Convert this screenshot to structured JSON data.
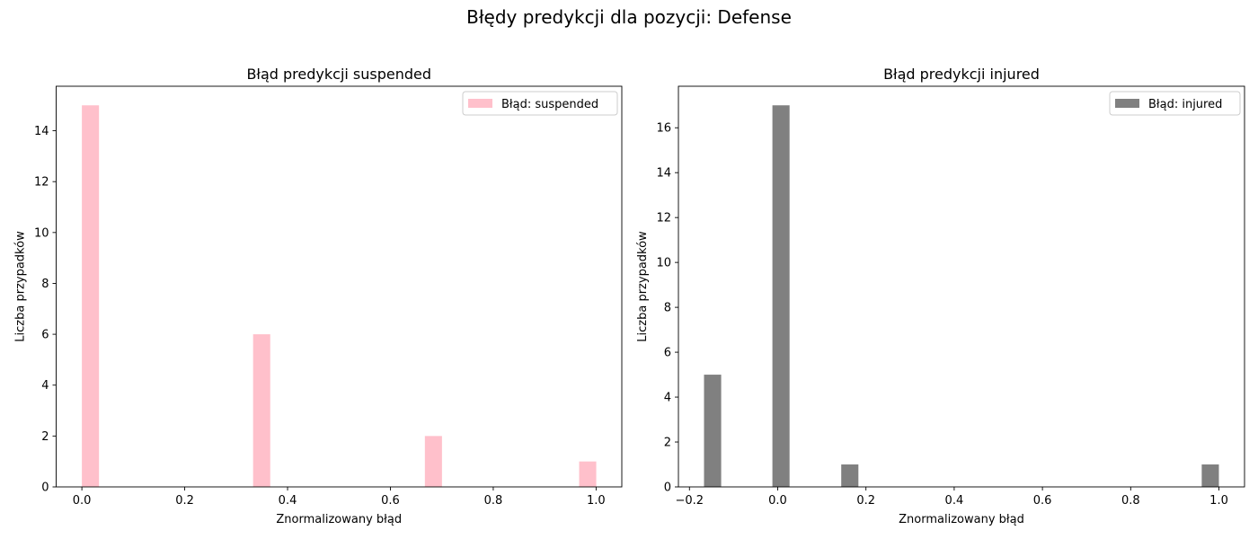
{
  "suptitle": "Błędy predykcji dla pozycji: Defense",
  "chart_data": [
    {
      "type": "bar",
      "title": "Błąd predykcji suspended",
      "xlabel": "Znormalizowany błąd",
      "ylabel": "Liczba przypadków",
      "legend": "Błąd: suspended",
      "legend_position": "top-right",
      "color": "#ffc0cb",
      "bin_width": 0.0333,
      "xlim": [
        -0.05,
        1.05
      ],
      "ylim": [
        0,
        15.75
      ],
      "xticks": [
        0.0,
        0.2,
        0.4,
        0.6,
        0.8,
        1.0
      ],
      "xtick_labels": [
        "0.0",
        "0.2",
        "0.4",
        "0.6",
        "0.8",
        "1.0"
      ],
      "yticks": [
        0,
        2,
        4,
        6,
        8,
        10,
        12,
        14
      ],
      "ytick_labels": [
        "0",
        "2",
        "4",
        "6",
        "8",
        "10",
        "12",
        "14"
      ],
      "bars": [
        {
          "x": 0.0,
          "value": 15
        },
        {
          "x": 0.333,
          "value": 6
        },
        {
          "x": 0.667,
          "value": 2
        },
        {
          "x": 0.967,
          "value": 1
        }
      ]
    },
    {
      "type": "bar",
      "title": "Błąd predykcji injured",
      "xlabel": "Znormalizowany błąd",
      "ylabel": "Liczba przypadków",
      "legend": "Błąd: injured",
      "legend_position": "top-right",
      "color": "#808080",
      "bin_width": 0.0389,
      "xlim": [
        -0.225,
        1.058
      ],
      "ylim": [
        0,
        17.85
      ],
      "xticks": [
        -0.2,
        0.0,
        0.2,
        0.4,
        0.6,
        0.8,
        1.0
      ],
      "xtick_labels": [
        "−0.2",
        "0.0",
        "0.2",
        "0.4",
        "0.6",
        "0.8",
        "1.0"
      ],
      "yticks": [
        0,
        2,
        4,
        6,
        8,
        10,
        12,
        14,
        16
      ],
      "ytick_labels": [
        "0",
        "2",
        "4",
        "6",
        "8",
        "10",
        "12",
        "14",
        "16"
      ],
      "bars": [
        {
          "x": -0.167,
          "value": 5
        },
        {
          "x": -0.012,
          "value": 17
        },
        {
          "x": 0.144,
          "value": 1
        },
        {
          "x": 0.961,
          "value": 1
        }
      ]
    }
  ]
}
